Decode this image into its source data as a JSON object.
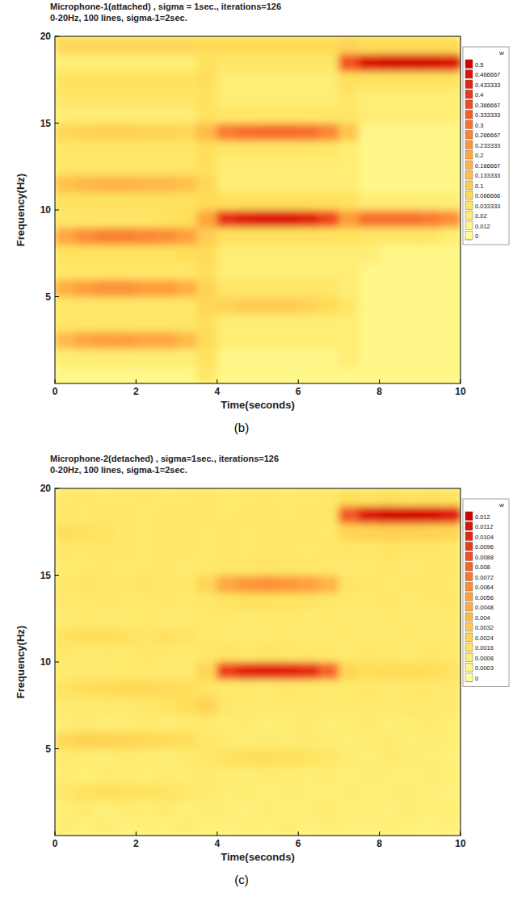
{
  "chart_data": [
    {
      "type": "heatmap",
      "title": "Microphone-1(attached) , sigma = 1sec., iterations=126",
      "subtitle": "0-20Hz, 100 lines, sigma-1=2sec.",
      "panel_label": "(b)",
      "x_label": "Time(seconds)",
      "y_label": "Frequency(Hz)",
      "xlim": [
        0,
        10
      ],
      "ylim": [
        0,
        20
      ],
      "xticks": [
        0,
        2,
        4,
        6,
        8,
        10
      ],
      "yticks": [
        5,
        10,
        15,
        20
      ],
      "x": [
        0.25,
        0.75,
        1.25,
        1.75,
        2.25,
        2.75,
        3.25,
        3.75,
        4.25,
        4.75,
        5.25,
        5.75,
        6.25,
        6.75,
        7.25,
        7.75,
        8.25,
        8.75,
        9.25,
        9.75
      ],
      "y": [
        0.5,
        1.5,
        2.5,
        3.5,
        4.5,
        5.5,
        6.5,
        7.5,
        8.5,
        9.5,
        10.5,
        11.5,
        12.5,
        13.5,
        14.5,
        15.5,
        16.5,
        17.5,
        18.5,
        19.5
      ],
      "cells": [
        [
          0.01,
          0.01,
          0.01,
          0.01,
          0.01,
          0.01,
          0.01,
          0.03,
          0.01,
          0.01,
          0.01,
          0.01,
          0.01,
          0.01,
          0.01,
          0.01,
          0.01,
          0.01,
          0.01,
          0.01
        ],
        [
          0.02,
          0.02,
          0.02,
          0.02,
          0.02,
          0.02,
          0.02,
          0.04,
          0.01,
          0.01,
          0.01,
          0.01,
          0.01,
          0.01,
          0.02,
          0.01,
          0.01,
          0.01,
          0.01,
          0.01
        ],
        [
          0.15,
          0.2,
          0.22,
          0.22,
          0.2,
          0.2,
          0.15,
          0.06,
          0.02,
          0.02,
          0.02,
          0.02,
          0.02,
          0.02,
          0.02,
          0.01,
          0.01,
          0.01,
          0.01,
          0.01
        ],
        [
          0.03,
          0.03,
          0.03,
          0.03,
          0.03,
          0.03,
          0.03,
          0.05,
          0.02,
          0.02,
          0.02,
          0.02,
          0.02,
          0.02,
          0.02,
          0.01,
          0.01,
          0.01,
          0.01,
          0.01
        ],
        [
          0.03,
          0.03,
          0.03,
          0.03,
          0.03,
          0.03,
          0.03,
          0.07,
          0.08,
          0.1,
          0.1,
          0.1,
          0.08,
          0.06,
          0.03,
          0.01,
          0.01,
          0.01,
          0.01,
          0.01
        ],
        [
          0.18,
          0.22,
          0.24,
          0.24,
          0.22,
          0.22,
          0.18,
          0.08,
          0.03,
          0.03,
          0.03,
          0.03,
          0.03,
          0.03,
          0.02,
          0.01,
          0.01,
          0.01,
          0.01,
          0.01
        ],
        [
          0.03,
          0.03,
          0.03,
          0.03,
          0.03,
          0.03,
          0.03,
          0.05,
          0.02,
          0.02,
          0.02,
          0.02,
          0.02,
          0.02,
          0.02,
          0.01,
          0.01,
          0.01,
          0.01,
          0.01
        ],
        [
          0.04,
          0.04,
          0.04,
          0.04,
          0.04,
          0.04,
          0.05,
          0.06,
          0.02,
          0.02,
          0.02,
          0.02,
          0.02,
          0.02,
          0.02,
          0.02,
          0.01,
          0.01,
          0.01,
          0.01
        ],
        [
          0.2,
          0.25,
          0.27,
          0.27,
          0.26,
          0.25,
          0.22,
          0.1,
          0.04,
          0.04,
          0.04,
          0.04,
          0.04,
          0.04,
          0.04,
          0.03,
          0.03,
          0.03,
          0.03,
          0.02
        ],
        [
          0.03,
          0.03,
          0.03,
          0.03,
          0.03,
          0.04,
          0.05,
          0.2,
          0.42,
          0.46,
          0.47,
          0.47,
          0.45,
          0.38,
          0.22,
          0.3,
          0.3,
          0.3,
          0.28,
          0.25
        ],
        [
          0.04,
          0.04,
          0.04,
          0.04,
          0.04,
          0.04,
          0.04,
          0.06,
          0.05,
          0.05,
          0.05,
          0.05,
          0.05,
          0.05,
          0.04,
          0.02,
          0.02,
          0.02,
          0.02,
          0.02
        ],
        [
          0.13,
          0.15,
          0.16,
          0.16,
          0.15,
          0.15,
          0.13,
          0.07,
          0.02,
          0.02,
          0.02,
          0.02,
          0.02,
          0.02,
          0.02,
          0.01,
          0.01,
          0.01,
          0.01,
          0.01
        ],
        [
          0.03,
          0.03,
          0.03,
          0.03,
          0.03,
          0.03,
          0.03,
          0.05,
          0.02,
          0.02,
          0.02,
          0.02,
          0.02,
          0.02,
          0.02,
          0.01,
          0.01,
          0.01,
          0.01,
          0.01
        ],
        [
          0.03,
          0.03,
          0.03,
          0.03,
          0.03,
          0.03,
          0.03,
          0.05,
          0.03,
          0.03,
          0.03,
          0.03,
          0.03,
          0.03,
          0.02,
          0.01,
          0.01,
          0.01,
          0.01,
          0.01
        ],
        [
          0.07,
          0.08,
          0.09,
          0.09,
          0.08,
          0.08,
          0.07,
          0.15,
          0.28,
          0.3,
          0.31,
          0.31,
          0.3,
          0.26,
          0.12,
          0.01,
          0.01,
          0.01,
          0.01,
          0.01
        ],
        [
          0.02,
          0.02,
          0.02,
          0.02,
          0.02,
          0.02,
          0.02,
          0.04,
          0.03,
          0.03,
          0.03,
          0.03,
          0.03,
          0.03,
          0.03,
          0.02,
          0.02,
          0.02,
          0.02,
          0.02
        ],
        [
          0.03,
          0.03,
          0.03,
          0.03,
          0.03,
          0.03,
          0.03,
          0.04,
          0.02,
          0.02,
          0.02,
          0.02,
          0.02,
          0.02,
          0.03,
          0.02,
          0.02,
          0.02,
          0.02,
          0.02
        ],
        [
          0.04,
          0.04,
          0.04,
          0.04,
          0.04,
          0.04,
          0.04,
          0.05,
          0.02,
          0.02,
          0.02,
          0.02,
          0.02,
          0.02,
          0.05,
          0.04,
          0.04,
          0.04,
          0.04,
          0.04
        ],
        [
          0.02,
          0.02,
          0.02,
          0.02,
          0.02,
          0.02,
          0.02,
          0.04,
          0.03,
          0.03,
          0.03,
          0.03,
          0.03,
          0.03,
          0.35,
          0.48,
          0.5,
          0.5,
          0.5,
          0.48
        ],
        [
          0.07,
          0.07,
          0.07,
          0.07,
          0.07,
          0.07,
          0.07,
          0.06,
          0.06,
          0.06,
          0.06,
          0.06,
          0.06,
          0.06,
          0.08,
          0.06,
          0.06,
          0.06,
          0.06,
          0.06
        ]
      ],
      "colorbar": {
        "label": "w",
        "range": [
          0,
          0.5
        ],
        "ticks": [
          0,
          0.012,
          0.02,
          0.033333,
          0.066666,
          0.1,
          0.133333,
          0.166667,
          0.2,
          0.233333,
          0.266667,
          0.3,
          0.333333,
          0.366667,
          0.4,
          0.433333,
          0.466667,
          0.5
        ]
      }
    },
    {
      "type": "heatmap",
      "title": "Microphone-2(detached) , sigma=1sec., iterations=126",
      "subtitle": "0-20Hz, 100 lines, sigma-1=2sec.",
      "panel_label": "(c)",
      "x_label": "Time(seconds)",
      "y_label": "Frequency(Hz)",
      "xlim": [
        0,
        10
      ],
      "ylim": [
        0,
        20
      ],
      "xticks": [
        0,
        2,
        4,
        6,
        8,
        10
      ],
      "yticks": [
        5,
        10,
        15,
        20
      ],
      "x": [
        0.25,
        0.75,
        1.25,
        1.75,
        2.25,
        2.75,
        3.25,
        3.75,
        4.25,
        4.75,
        5.25,
        5.75,
        6.25,
        6.75,
        7.25,
        7.75,
        8.25,
        8.75,
        9.25,
        9.75
      ],
      "y": [
        0.5,
        1.5,
        2.5,
        3.5,
        4.5,
        5.5,
        6.5,
        7.5,
        8.5,
        9.5,
        10.5,
        11.5,
        12.5,
        13.5,
        14.5,
        15.5,
        16.5,
        17.5,
        18.5,
        19.5
      ],
      "cells": [
        [
          0.0008,
          0.0006,
          0.0008,
          0.0005,
          0.0007,
          0.0006,
          0.0008,
          0.0006,
          0.0005,
          0.0007,
          0.0006,
          0.0008,
          0.0005,
          0.0007,
          0.0006,
          0.0005,
          0.0007,
          0.0006,
          0.0005,
          0.0006
        ],
        [
          0.0007,
          0.0009,
          0.0006,
          0.0008,
          0.0007,
          0.0009,
          0.0006,
          0.0008,
          0.0007,
          0.0005,
          0.0008,
          0.0006,
          0.0007,
          0.0009,
          0.0006,
          0.0007,
          0.0005,
          0.0008,
          0.0006,
          0.0007
        ],
        [
          0.0012,
          0.0016,
          0.0018,
          0.0016,
          0.0015,
          0.0014,
          0.0012,
          0.0009,
          0.0007,
          0.0008,
          0.0006,
          0.0008,
          0.0007,
          0.0006,
          0.0008,
          0.0006,
          0.0007,
          0.0008,
          0.0006,
          0.0005
        ],
        [
          0.0008,
          0.0007,
          0.0009,
          0.0008,
          0.0007,
          0.0009,
          0.0008,
          0.001,
          0.0008,
          0.0007,
          0.0009,
          0.0008,
          0.0007,
          0.0008,
          0.0006,
          0.0008,
          0.0007,
          0.0006,
          0.0008,
          0.0007
        ],
        [
          0.0009,
          0.0008,
          0.0007,
          0.0009,
          0.0008,
          0.0007,
          0.0009,
          0.0012,
          0.0016,
          0.0018,
          0.0018,
          0.0017,
          0.0016,
          0.0012,
          0.0008,
          0.0007,
          0.0009,
          0.0008,
          0.0007,
          0.0006
        ],
        [
          0.0022,
          0.0026,
          0.0026,
          0.0024,
          0.0022,
          0.002,
          0.0018,
          0.0012,
          0.0009,
          0.0008,
          0.0009,
          0.0008,
          0.0009,
          0.0008,
          0.0007,
          0.0008,
          0.0009,
          0.0007,
          0.0008,
          0.0007
        ],
        [
          0.0008,
          0.0009,
          0.0007,
          0.0008,
          0.001,
          0.0008,
          0.0009,
          0.001,
          0.0008,
          0.0009,
          0.0007,
          0.0008,
          0.0009,
          0.0007,
          0.0008,
          0.0009,
          0.0007,
          0.0008,
          0.0009,
          0.0007
        ],
        [
          0.001,
          0.0009,
          0.0011,
          0.001,
          0.0012,
          0.0014,
          0.0018,
          0.0026,
          0.0012,
          0.001,
          0.0009,
          0.001,
          0.0011,
          0.0009,
          0.001,
          0.0009,
          0.001,
          0.0011,
          0.0009,
          0.001
        ],
        [
          0.0016,
          0.0018,
          0.002,
          0.0022,
          0.0022,
          0.002,
          0.0018,
          0.0014,
          0.001,
          0.0011,
          0.001,
          0.0012,
          0.0011,
          0.001,
          0.0011,
          0.0012,
          0.001,
          0.0011,
          0.0012,
          0.001
        ],
        [
          0.0009,
          0.001,
          0.0009,
          0.0011,
          0.001,
          0.0009,
          0.001,
          0.0024,
          0.0096,
          0.0108,
          0.011,
          0.0108,
          0.0104,
          0.008,
          0.0024,
          0.0018,
          0.002,
          0.002,
          0.0018,
          0.0016
        ],
        [
          0.0012,
          0.001,
          0.0011,
          0.001,
          0.0012,
          0.0011,
          0.001,
          0.0012,
          0.0014,
          0.0012,
          0.0014,
          0.0013,
          0.0012,
          0.0011,
          0.001,
          0.0012,
          0.0011,
          0.001,
          0.0012,
          0.0011
        ],
        [
          0.0016,
          0.0018,
          0.0018,
          0.0016,
          0.0014,
          0.0016,
          0.0014,
          0.0011,
          0.001,
          0.0009,
          0.001,
          0.0011,
          0.0009,
          0.001,
          0.0011,
          0.0009,
          0.001,
          0.0011,
          0.0009,
          0.001
        ],
        [
          0.001,
          0.0011,
          0.0009,
          0.001,
          0.0011,
          0.0009,
          0.001,
          0.0011,
          0.001,
          0.0009,
          0.0011,
          0.001,
          0.0009,
          0.0011,
          0.001,
          0.0009,
          0.0011,
          0.001,
          0.0009,
          0.001
        ],
        [
          0.0011,
          0.001,
          0.0012,
          0.0011,
          0.001,
          0.0012,
          0.0011,
          0.0012,
          0.0014,
          0.0016,
          0.0016,
          0.0015,
          0.0014,
          0.0012,
          0.001,
          0.0011,
          0.0012,
          0.001,
          0.0011,
          0.0012
        ],
        [
          0.0012,
          0.0014,
          0.0013,
          0.0012,
          0.0014,
          0.0013,
          0.0012,
          0.0024,
          0.0052,
          0.006,
          0.0062,
          0.006,
          0.0056,
          0.0044,
          0.0014,
          0.0012,
          0.0011,
          0.0012,
          0.0013,
          0.0011
        ],
        [
          0.001,
          0.0011,
          0.0012,
          0.001,
          0.0011,
          0.0012,
          0.001,
          0.0011,
          0.0013,
          0.0012,
          0.0014,
          0.0013,
          0.0012,
          0.0011,
          0.001,
          0.0011,
          0.0012,
          0.001,
          0.0011,
          0.0012
        ],
        [
          0.0012,
          0.0011,
          0.0013,
          0.0012,
          0.0011,
          0.0013,
          0.0012,
          0.0011,
          0.0012,
          0.0011,
          0.0013,
          0.0012,
          0.0011,
          0.0012,
          0.0013,
          0.0012,
          0.0014,
          0.0013,
          0.0014,
          0.0012
        ],
        [
          0.0018,
          0.0016,
          0.0014,
          0.0012,
          0.0011,
          0.0013,
          0.0012,
          0.0011,
          0.0012,
          0.0011,
          0.0012,
          0.0013,
          0.0012,
          0.0011,
          0.0024,
          0.0026,
          0.0028,
          0.0028,
          0.0026,
          0.0024
        ],
        [
          0.0012,
          0.0011,
          0.0013,
          0.0012,
          0.0011,
          0.0012,
          0.0013,
          0.0012,
          0.0011,
          0.0012,
          0.0013,
          0.0011,
          0.0012,
          0.0013,
          0.0084,
          0.0112,
          0.012,
          0.012,
          0.0118,
          0.011
        ],
        [
          0.0011,
          0.0012,
          0.001,
          0.0011,
          0.0012,
          0.001,
          0.0011,
          0.0012,
          0.001,
          0.0011,
          0.0012,
          0.001,
          0.0011,
          0.0012,
          0.0018,
          0.0016,
          0.0018,
          0.0016,
          0.0017,
          0.0016
        ]
      ],
      "colorbar": {
        "label": "w",
        "range": [
          0,
          0.012
        ],
        "ticks": [
          0,
          0.0003,
          0.0008,
          0.0016,
          0.0024,
          0.0032,
          0.004,
          0.0048,
          0.0056,
          0.0064,
          0.0072,
          0.008,
          0.0088,
          0.0096,
          0.0104,
          0.0112,
          0.012
        ]
      }
    }
  ]
}
